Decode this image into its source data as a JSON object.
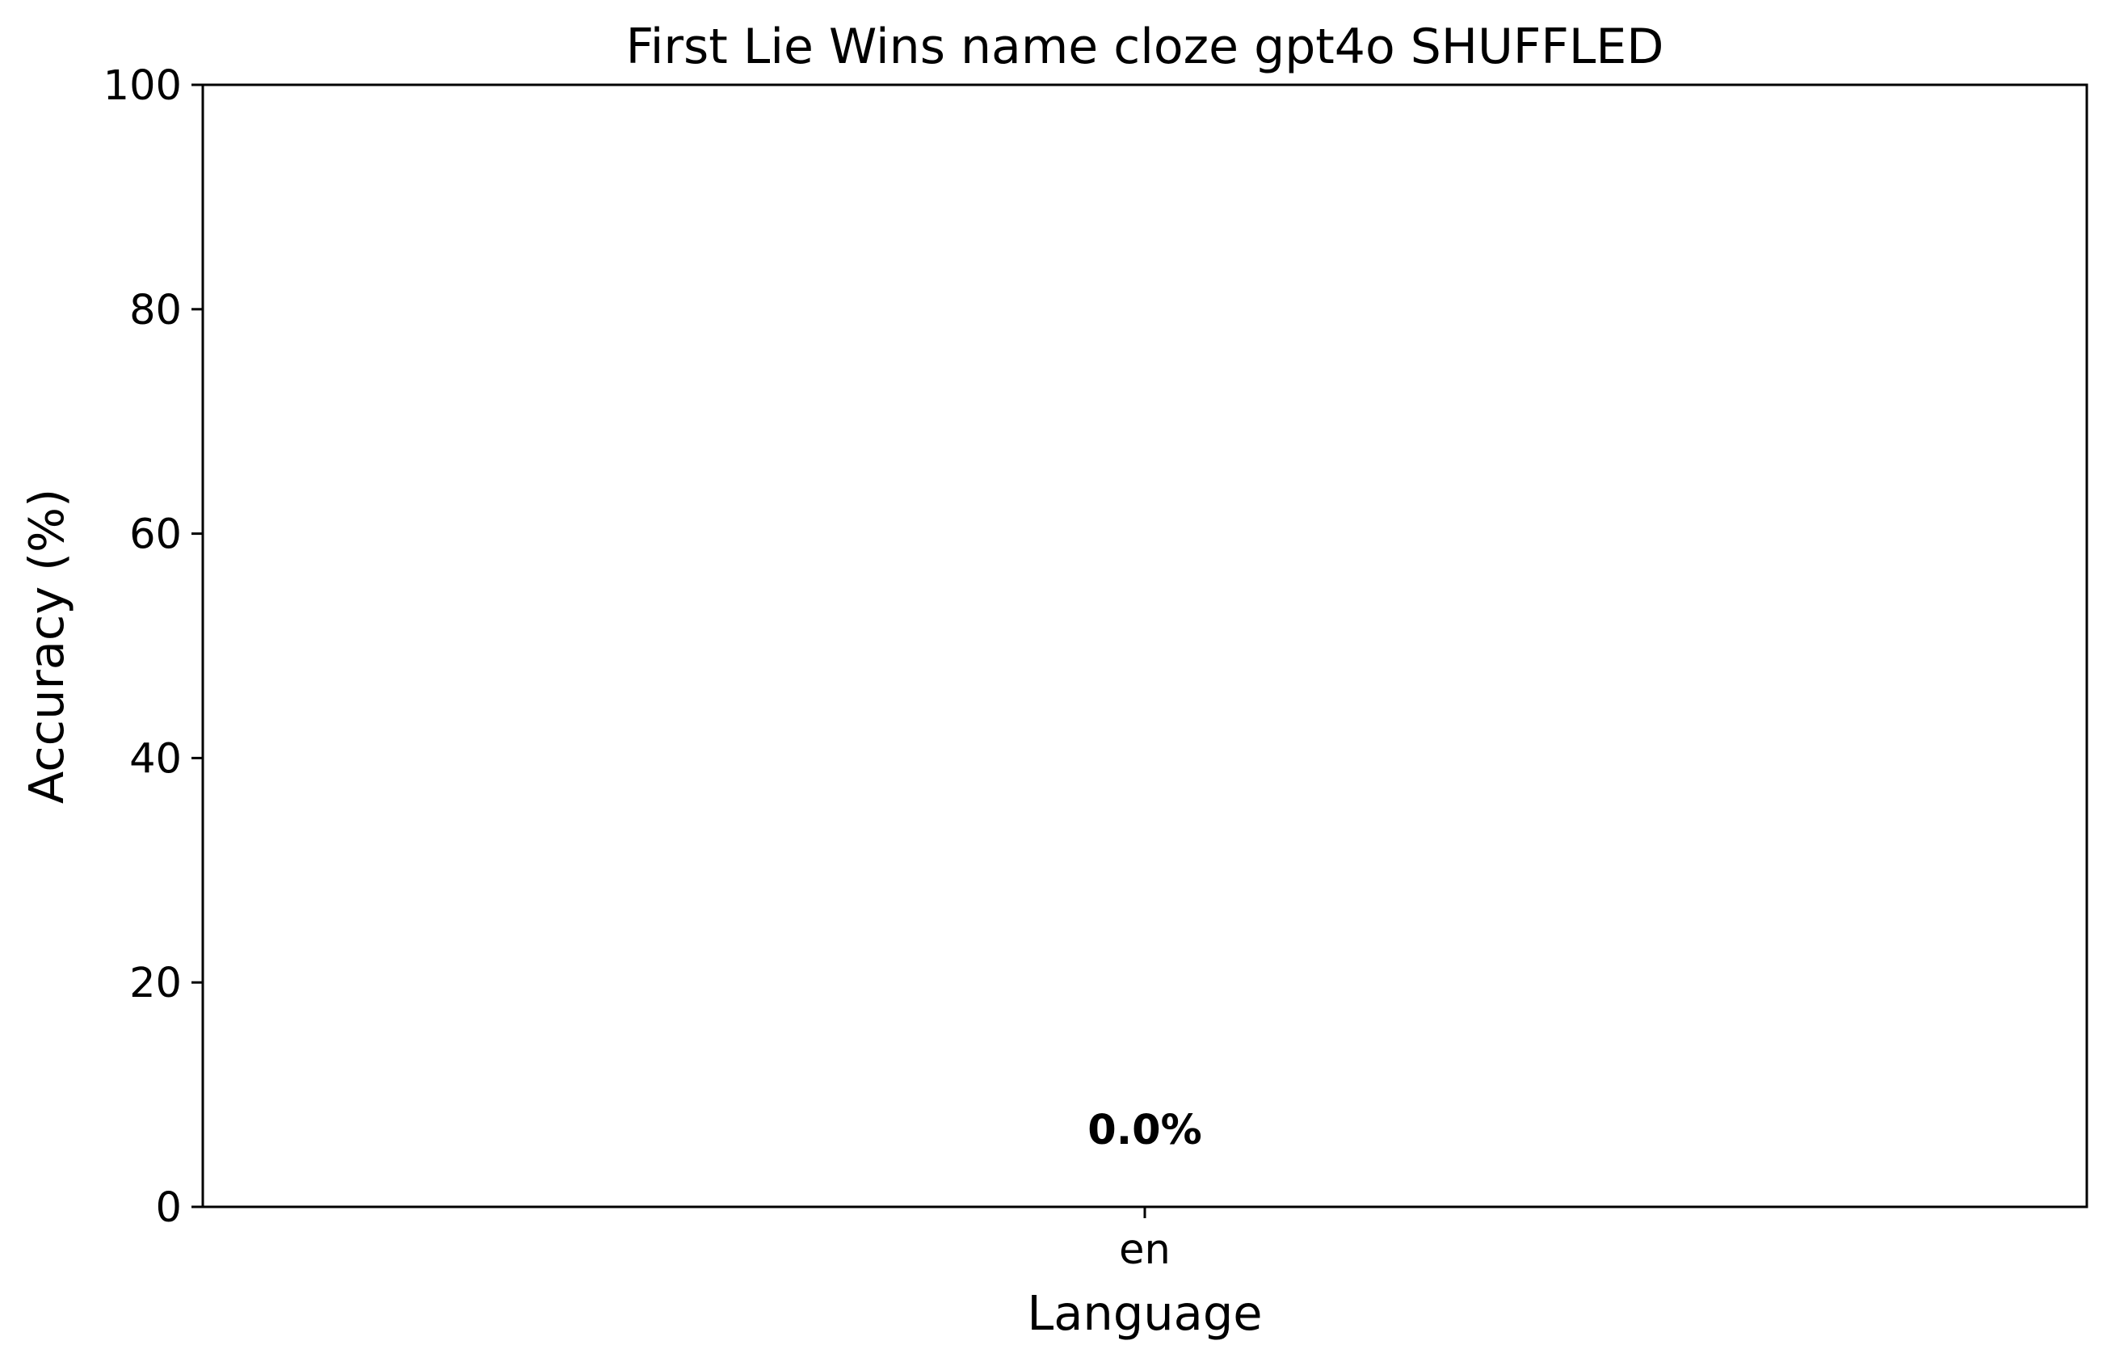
{
  "chart_data": {
    "type": "bar",
    "title": "First Lie Wins name cloze gpt4o SHUFFLED",
    "xlabel": "Language",
    "ylabel": "Accuracy (%)",
    "categories": [
      "en"
    ],
    "values": [
      0.0
    ],
    "data_labels": [
      "0.0%"
    ],
    "ylim": [
      0,
      100
    ],
    "yticks": [
      0,
      20,
      40,
      60,
      80,
      100
    ],
    "ytick_labels": [
      "0",
      "20",
      "40",
      "60",
      "80",
      "100"
    ],
    "grid": false,
    "legend": "none",
    "bar_color": "#1f77b4"
  }
}
